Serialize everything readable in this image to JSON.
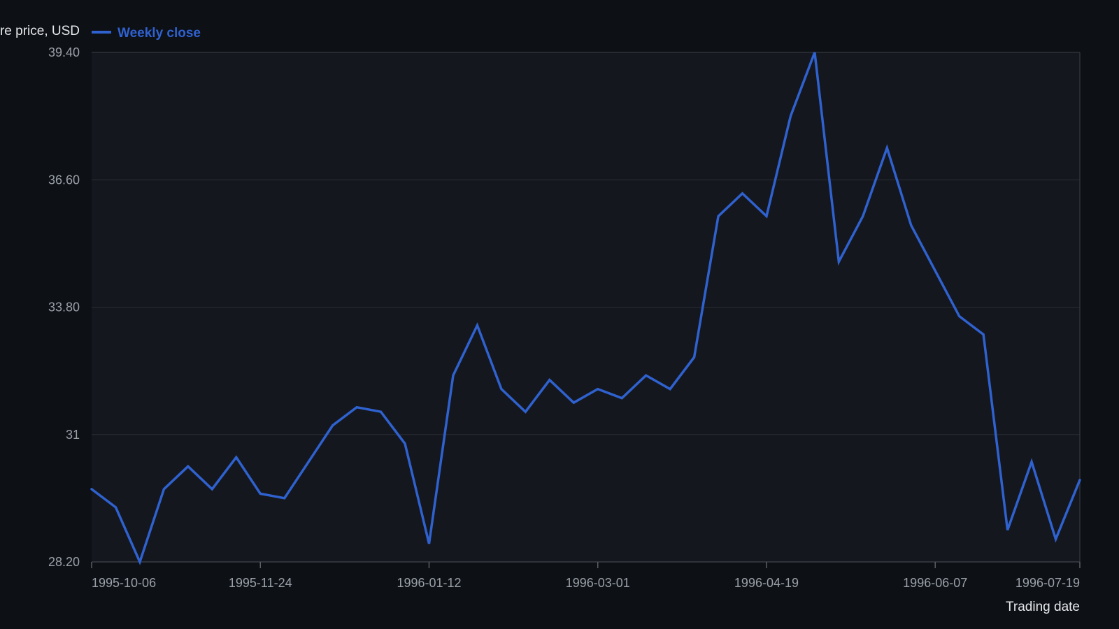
{
  "chart_data": {
    "type": "line",
    "xlabel": "Trading date",
    "ylabel": "Share price, USD",
    "x_ticks": [
      "1995-10-06",
      "1995-11-24",
      "1996-01-12",
      "1996-03-01",
      "1996-04-19",
      "1996-06-07",
      "1996-07-19"
    ],
    "y_ticks": [
      "28.20",
      "31",
      "33.80",
      "36.60",
      "39.40"
    ],
    "ylim": [
      28.2,
      39.4
    ],
    "xlim": [
      "1995-10-06",
      "1996-07-19"
    ],
    "grid": true,
    "legend_position": "top",
    "colors": {
      "background": "#0d1015",
      "plot_background": "#14171d",
      "grid": "#2a2e35",
      "series": "#2f61cf",
      "tick_text": "#9aa0a8",
      "axis_title": "#e6e8eb"
    },
    "series": [
      {
        "name": "Weekly close",
        "x": [
          "1995-10-06",
          "1995-10-13",
          "1995-10-20",
          "1995-10-27",
          "1995-11-03",
          "1995-11-10",
          "1995-11-17",
          "1995-11-24",
          "1995-12-01",
          "1995-12-08",
          "1995-12-15",
          "1995-12-22",
          "1995-12-29",
          "1996-01-05",
          "1996-01-12",
          "1996-01-19",
          "1996-01-26",
          "1996-02-02",
          "1996-02-09",
          "1996-02-16",
          "1996-02-23",
          "1996-03-01",
          "1996-03-08",
          "1996-03-15",
          "1996-03-22",
          "1996-03-29",
          "1996-04-05",
          "1996-04-12",
          "1996-04-19",
          "1996-04-26",
          "1996-05-03",
          "1996-05-10",
          "1996-05-17",
          "1996-05-24",
          "1996-05-31",
          "1996-06-07",
          "1996-06-14",
          "1996-06-21",
          "1996-06-28",
          "1996-07-05",
          "1996-07-12",
          "1996-07-19"
        ],
        "values": [
          29.8,
          29.4,
          28.2,
          29.8,
          30.3,
          29.8,
          30.5,
          29.7,
          29.6,
          30.4,
          31.2,
          31.6,
          31.5,
          30.8,
          28.6,
          32.3,
          33.4,
          32.0,
          31.5,
          32.2,
          31.7,
          32.0,
          31.8,
          32.3,
          32.0,
          32.7,
          35.8,
          36.3,
          35.8,
          38.0,
          39.4,
          34.8,
          35.8,
          37.3,
          35.6,
          34.6,
          33.6,
          33.2,
          28.9,
          30.4,
          28.7,
          30.0
        ]
      }
    ]
  }
}
